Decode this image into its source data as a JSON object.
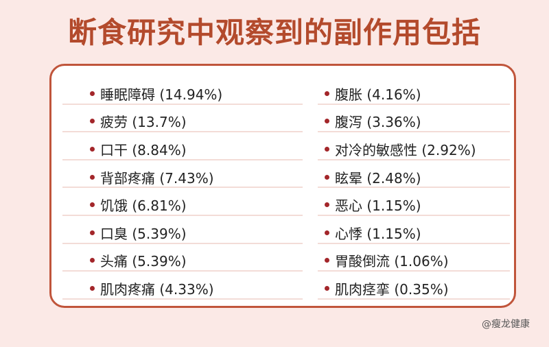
{
  "title": "断食研究中观察到的副作用包括",
  "left_items": [
    {
      "label": "睡眠障碍 (14.94%)"
    },
    {
      "label": "疲劳 (13.7%)"
    },
    {
      "label": "口干 (8.84%)"
    },
    {
      "label": "背部疼痛 (7.43%)"
    },
    {
      "label": "饥饿 (6.81%)"
    },
    {
      "label": "口臭 (5.39%)"
    },
    {
      "label": "头痛 (5.39%)"
    },
    {
      "label": "肌肉疼痛 (4.33%)"
    }
  ],
  "right_items": [
    {
      "label": "腹胀 (4.16%)"
    },
    {
      "label": "腹泻 (3.36%)"
    },
    {
      "label": "对冷的敏感性 (2.92%)"
    },
    {
      "label": "眩晕 (2.48%)"
    },
    {
      "label": "恶心 (1.15%)"
    },
    {
      "label": "心悸 (1.15%)"
    },
    {
      "label": "胃酸倒流 (1.06%)"
    },
    {
      "label": "肌肉痉挛 (0.35%)"
    }
  ],
  "watermark": "@瘦龙健康",
  "colors": {
    "background": "#fbe9e6",
    "title": "#b34a2c",
    "card_border": "#c0553b",
    "bullet": "#a3262a",
    "divider": "#f3dcd7"
  }
}
